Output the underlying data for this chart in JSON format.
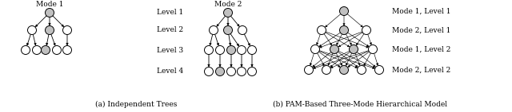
{
  "fig_width": 6.4,
  "fig_height": 1.41,
  "dpi": 100,
  "bg_color": "#ffffff",
  "gray_fill": "#c0c0c0",
  "white_fill": "#ffffff",
  "edge_color": "#000000",
  "tree1_title": "Mode 1",
  "tree2_title": "Mode 2",
  "pam_title": "(b) PAM-Based Three-Mode Hierarchical Model",
  "ind_title": "(a) Independent Trees",
  "pam_level_labels": [
    "Mode 1, Level 1",
    "Mode 2, Level 1",
    "Mode 1, Level 2",
    "Mode 2, Level 2"
  ],
  "font_size": 6.5,
  "node_r": 5.5
}
